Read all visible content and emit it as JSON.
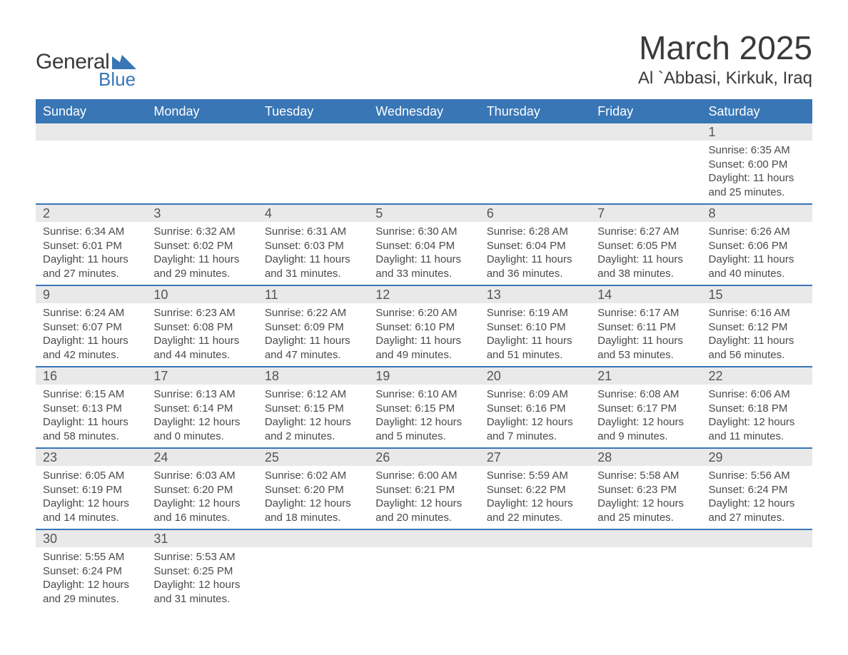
{
  "logo": {
    "text1": "General",
    "text2": "Blue"
  },
  "title": "March 2025",
  "location": "Al `Abbasi, Kirkuk, Iraq",
  "colors": {
    "header_bg": "#3876b5",
    "header_text": "#ffffff",
    "daybar_bg": "#e9e9e9",
    "row_border": "#3876b5",
    "body_text": "#4a4a4a",
    "title_text": "#3a3a3a"
  },
  "day_names": [
    "Sunday",
    "Monday",
    "Tuesday",
    "Wednesday",
    "Thursday",
    "Friday",
    "Saturday"
  ],
  "weeks": [
    [
      {
        "day": "",
        "sunrise": "",
        "sunset": "",
        "daylight1": "",
        "daylight2": ""
      },
      {
        "day": "",
        "sunrise": "",
        "sunset": "",
        "daylight1": "",
        "daylight2": ""
      },
      {
        "day": "",
        "sunrise": "",
        "sunset": "",
        "daylight1": "",
        "daylight2": ""
      },
      {
        "day": "",
        "sunrise": "",
        "sunset": "",
        "daylight1": "",
        "daylight2": ""
      },
      {
        "day": "",
        "sunrise": "",
        "sunset": "",
        "daylight1": "",
        "daylight2": ""
      },
      {
        "day": "",
        "sunrise": "",
        "sunset": "",
        "daylight1": "",
        "daylight2": ""
      },
      {
        "day": "1",
        "sunrise": "Sunrise: 6:35 AM",
        "sunset": "Sunset: 6:00 PM",
        "daylight1": "Daylight: 11 hours",
        "daylight2": "and 25 minutes."
      }
    ],
    [
      {
        "day": "2",
        "sunrise": "Sunrise: 6:34 AM",
        "sunset": "Sunset: 6:01 PM",
        "daylight1": "Daylight: 11 hours",
        "daylight2": "and 27 minutes."
      },
      {
        "day": "3",
        "sunrise": "Sunrise: 6:32 AM",
        "sunset": "Sunset: 6:02 PM",
        "daylight1": "Daylight: 11 hours",
        "daylight2": "and 29 minutes."
      },
      {
        "day": "4",
        "sunrise": "Sunrise: 6:31 AM",
        "sunset": "Sunset: 6:03 PM",
        "daylight1": "Daylight: 11 hours",
        "daylight2": "and 31 minutes."
      },
      {
        "day": "5",
        "sunrise": "Sunrise: 6:30 AM",
        "sunset": "Sunset: 6:04 PM",
        "daylight1": "Daylight: 11 hours",
        "daylight2": "and 33 minutes."
      },
      {
        "day": "6",
        "sunrise": "Sunrise: 6:28 AM",
        "sunset": "Sunset: 6:04 PM",
        "daylight1": "Daylight: 11 hours",
        "daylight2": "and 36 minutes."
      },
      {
        "day": "7",
        "sunrise": "Sunrise: 6:27 AM",
        "sunset": "Sunset: 6:05 PM",
        "daylight1": "Daylight: 11 hours",
        "daylight2": "and 38 minutes."
      },
      {
        "day": "8",
        "sunrise": "Sunrise: 6:26 AM",
        "sunset": "Sunset: 6:06 PM",
        "daylight1": "Daylight: 11 hours",
        "daylight2": "and 40 minutes."
      }
    ],
    [
      {
        "day": "9",
        "sunrise": "Sunrise: 6:24 AM",
        "sunset": "Sunset: 6:07 PM",
        "daylight1": "Daylight: 11 hours",
        "daylight2": "and 42 minutes."
      },
      {
        "day": "10",
        "sunrise": "Sunrise: 6:23 AM",
        "sunset": "Sunset: 6:08 PM",
        "daylight1": "Daylight: 11 hours",
        "daylight2": "and 44 minutes."
      },
      {
        "day": "11",
        "sunrise": "Sunrise: 6:22 AM",
        "sunset": "Sunset: 6:09 PM",
        "daylight1": "Daylight: 11 hours",
        "daylight2": "and 47 minutes."
      },
      {
        "day": "12",
        "sunrise": "Sunrise: 6:20 AM",
        "sunset": "Sunset: 6:10 PM",
        "daylight1": "Daylight: 11 hours",
        "daylight2": "and 49 minutes."
      },
      {
        "day": "13",
        "sunrise": "Sunrise: 6:19 AM",
        "sunset": "Sunset: 6:10 PM",
        "daylight1": "Daylight: 11 hours",
        "daylight2": "and 51 minutes."
      },
      {
        "day": "14",
        "sunrise": "Sunrise: 6:17 AM",
        "sunset": "Sunset: 6:11 PM",
        "daylight1": "Daylight: 11 hours",
        "daylight2": "and 53 minutes."
      },
      {
        "day": "15",
        "sunrise": "Sunrise: 6:16 AM",
        "sunset": "Sunset: 6:12 PM",
        "daylight1": "Daylight: 11 hours",
        "daylight2": "and 56 minutes."
      }
    ],
    [
      {
        "day": "16",
        "sunrise": "Sunrise: 6:15 AM",
        "sunset": "Sunset: 6:13 PM",
        "daylight1": "Daylight: 11 hours",
        "daylight2": "and 58 minutes."
      },
      {
        "day": "17",
        "sunrise": "Sunrise: 6:13 AM",
        "sunset": "Sunset: 6:14 PM",
        "daylight1": "Daylight: 12 hours",
        "daylight2": "and 0 minutes."
      },
      {
        "day": "18",
        "sunrise": "Sunrise: 6:12 AM",
        "sunset": "Sunset: 6:15 PM",
        "daylight1": "Daylight: 12 hours",
        "daylight2": "and 2 minutes."
      },
      {
        "day": "19",
        "sunrise": "Sunrise: 6:10 AM",
        "sunset": "Sunset: 6:15 PM",
        "daylight1": "Daylight: 12 hours",
        "daylight2": "and 5 minutes."
      },
      {
        "day": "20",
        "sunrise": "Sunrise: 6:09 AM",
        "sunset": "Sunset: 6:16 PM",
        "daylight1": "Daylight: 12 hours",
        "daylight2": "and 7 minutes."
      },
      {
        "day": "21",
        "sunrise": "Sunrise: 6:08 AM",
        "sunset": "Sunset: 6:17 PM",
        "daylight1": "Daylight: 12 hours",
        "daylight2": "and 9 minutes."
      },
      {
        "day": "22",
        "sunrise": "Sunrise: 6:06 AM",
        "sunset": "Sunset: 6:18 PM",
        "daylight1": "Daylight: 12 hours",
        "daylight2": "and 11 minutes."
      }
    ],
    [
      {
        "day": "23",
        "sunrise": "Sunrise: 6:05 AM",
        "sunset": "Sunset: 6:19 PM",
        "daylight1": "Daylight: 12 hours",
        "daylight2": "and 14 minutes."
      },
      {
        "day": "24",
        "sunrise": "Sunrise: 6:03 AM",
        "sunset": "Sunset: 6:20 PM",
        "daylight1": "Daylight: 12 hours",
        "daylight2": "and 16 minutes."
      },
      {
        "day": "25",
        "sunrise": "Sunrise: 6:02 AM",
        "sunset": "Sunset: 6:20 PM",
        "daylight1": "Daylight: 12 hours",
        "daylight2": "and 18 minutes."
      },
      {
        "day": "26",
        "sunrise": "Sunrise: 6:00 AM",
        "sunset": "Sunset: 6:21 PM",
        "daylight1": "Daylight: 12 hours",
        "daylight2": "and 20 minutes."
      },
      {
        "day": "27",
        "sunrise": "Sunrise: 5:59 AM",
        "sunset": "Sunset: 6:22 PM",
        "daylight1": "Daylight: 12 hours",
        "daylight2": "and 22 minutes."
      },
      {
        "day": "28",
        "sunrise": "Sunrise: 5:58 AM",
        "sunset": "Sunset: 6:23 PM",
        "daylight1": "Daylight: 12 hours",
        "daylight2": "and 25 minutes."
      },
      {
        "day": "29",
        "sunrise": "Sunrise: 5:56 AM",
        "sunset": "Sunset: 6:24 PM",
        "daylight1": "Daylight: 12 hours",
        "daylight2": "and 27 minutes."
      }
    ],
    [
      {
        "day": "30",
        "sunrise": "Sunrise: 5:55 AM",
        "sunset": "Sunset: 6:24 PM",
        "daylight1": "Daylight: 12 hours",
        "daylight2": "and 29 minutes."
      },
      {
        "day": "31",
        "sunrise": "Sunrise: 5:53 AM",
        "sunset": "Sunset: 6:25 PM",
        "daylight1": "Daylight: 12 hours",
        "daylight2": "and 31 minutes."
      },
      {
        "day": "",
        "sunrise": "",
        "sunset": "",
        "daylight1": "",
        "daylight2": ""
      },
      {
        "day": "",
        "sunrise": "",
        "sunset": "",
        "daylight1": "",
        "daylight2": ""
      },
      {
        "day": "",
        "sunrise": "",
        "sunset": "",
        "daylight1": "",
        "daylight2": ""
      },
      {
        "day": "",
        "sunrise": "",
        "sunset": "",
        "daylight1": "",
        "daylight2": ""
      },
      {
        "day": "",
        "sunrise": "",
        "sunset": "",
        "daylight1": "",
        "daylight2": ""
      }
    ]
  ]
}
